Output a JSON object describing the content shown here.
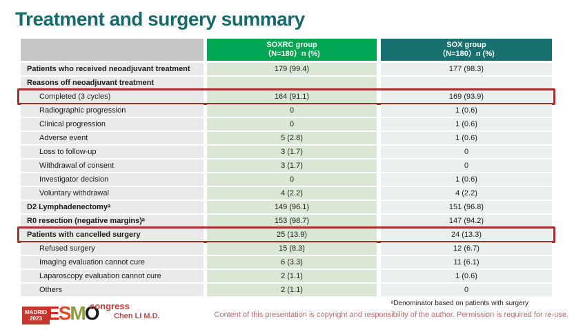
{
  "title": "Treatment and surgery summary",
  "table": {
    "header": {
      "soxrc": {
        "line1": "SOXRC group",
        "line2": "（N=180）n (%)"
      },
      "sox": {
        "line1": "SOX group",
        "line2": "（N=180）n (%)"
      }
    },
    "rows": [
      {
        "label": "Patients who received neoadjuvant treatment",
        "soxrc": "179 (99.4)",
        "sox": "177 (98.3)"
      },
      {
        "label": "Reasons off neoadjuvant treatment",
        "soxrc": "",
        "sox": ""
      },
      {
        "label": "Completed (3 cycles)",
        "soxrc": "164 (91.1)",
        "sox": "169 (93.9)"
      },
      {
        "label": "Radiographic progression",
        "soxrc": "0",
        "sox": "1 (0.6)"
      },
      {
        "label": "Clinical progression",
        "soxrc": "0",
        "sox": "1 (0.6)"
      },
      {
        "label": "Adverse event",
        "soxrc": "5 (2.8)",
        "sox": "1 (0.6)"
      },
      {
        "label": "Loss to follow-up",
        "soxrc": "3 (1.7)",
        "sox": "0"
      },
      {
        "label": "Withdrawal of consent",
        "soxrc": "3 (1.7)",
        "sox": "0"
      },
      {
        "label": "Investigator decision",
        "soxrc": "0",
        "sox": "1 (0.6)"
      },
      {
        "label": "Voluntary withdrawal",
        "soxrc": "4 (2.2)",
        "sox": "4 (2.2)"
      },
      {
        "label": "D2 Lymphadenectomyᵃ",
        "soxrc": "149 (96.1)",
        "sox": "151 (96.8)"
      },
      {
        "label": "R0 resection (negative margins)ᵃ",
        "soxrc": "153 (98.7)",
        "sox": "147 (94.2)"
      },
      {
        "label": "Patients with cancelled surgery",
        "soxrc": "25 (13.9)",
        "sox": "24 (13.3)"
      },
      {
        "label": "Refused surgery",
        "soxrc": "15 (8.3)",
        "sox": "12 (6.7)"
      },
      {
        "label": "Imaging evaluation cannot cure",
        "soxrc": "6 (3.3)",
        "sox": "11 (6.1)"
      },
      {
        "label": "Laparoscopy evaluation cannot cure",
        "soxrc": "2 (1.1)",
        "sox": "1 (0.6)"
      },
      {
        "label": "Others",
        "soxrc": "2 (1.1)",
        "sox": "0"
      }
    ]
  },
  "footer": {
    "logo": {
      "badge_line1": "MADRID",
      "badge_line2": "2023",
      "letter_e": "E",
      "letter_s": "S",
      "letter_m": "M",
      "letter_o": "O",
      "congress": "congress"
    },
    "author": "Chen LI M.D.",
    "footnote": "ᵃDenominator based on patients with surgery",
    "copyright": "Content of this presentation is copyright and responsibility of the author. Permission is required for re-use."
  },
  "colors": {
    "title_teal": "#17696C",
    "soxrc_header_green": "#00A651",
    "sox_header_teal": "#187071",
    "label_column_gray": "#E9E9E9",
    "soxrc_column_green": "#D9E7D4",
    "sox_column_blue_gray": "#E9EFEF",
    "highlight_red": "#A52F2B",
    "logo_red": "#C8372D"
  }
}
